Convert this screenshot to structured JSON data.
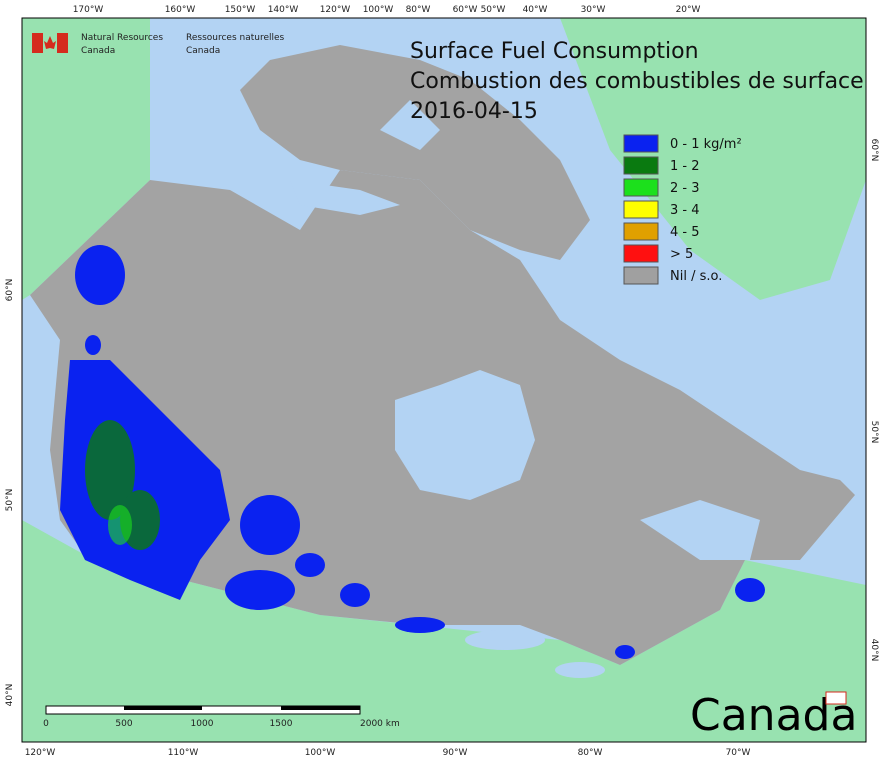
{
  "header": {
    "agency_en": "Natural Resources",
    "country_en": "Canada",
    "agency_fr": "Ressources naturelles",
    "country_fr": "Canada"
  },
  "title": {
    "line1": "Surface Fuel Consumption",
    "line2": "Combustion des combustibles de surface",
    "date": "2016-04-15"
  },
  "legend": [
    {
      "label": "0 - 1 kg/m²",
      "color": "#0a22f0"
    },
    {
      "label": "1 - 2",
      "color": "#0a7a10"
    },
    {
      "label": "2 - 3",
      "color": "#1ce01c"
    },
    {
      "label": "3 - 4",
      "color": "#ffff00"
    },
    {
      "label": "4 - 5",
      "color": "#e0a000"
    },
    {
      "label": "> 5",
      "color": "#ff1010"
    },
    {
      "label": "Nil / s.o.",
      "color": "#a0a0a0"
    }
  ],
  "graticule": {
    "top": [
      "170°W",
      "160°W",
      "150°W",
      "140°W",
      "120°W",
      "100°W",
      "80°W",
      "60°W",
      "50°W",
      "40°W",
      "30°W",
      "20°W"
    ],
    "bottom": [
      "120°W",
      "110°W",
      "100°W",
      "90°W",
      "80°W",
      "70°W"
    ],
    "left": [
      "60°N",
      "50°N",
      "40°N"
    ],
    "right": [
      "60°N",
      "50°N",
      "40°N"
    ]
  },
  "scale_bar": {
    "labels": [
      "0",
      "500",
      "1000",
      "1500",
      "2000  km"
    ]
  },
  "wordmark": "Canada"
}
